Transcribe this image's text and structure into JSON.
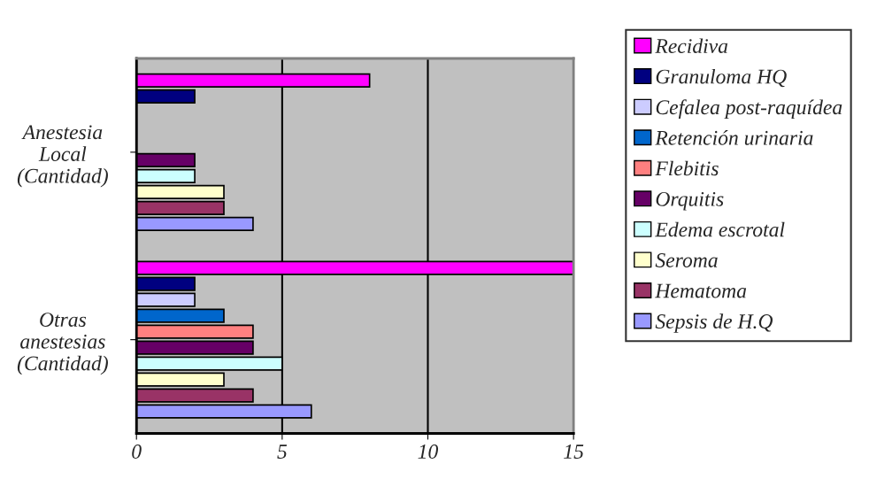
{
  "chart_data": {
    "type": "bar",
    "orientation": "horizontal",
    "categories": [
      "Anestesia Local (Cantidad)",
      "Otras anestesias (Cantidad)"
    ],
    "series": [
      {
        "name": "Recidiva",
        "color": "#ff00ff",
        "values": [
          8,
          15
        ]
      },
      {
        "name": "Granuloma HQ",
        "color": "#000080",
        "values": [
          2,
          2
        ]
      },
      {
        "name": "Cefalea post-raquídea",
        "color": "#ccccff",
        "values": [
          0,
          2
        ]
      },
      {
        "name": "Retención urinaria",
        "color": "#0066cc",
        "values": [
          0,
          3
        ]
      },
      {
        "name": "Flebitis",
        "color": "#ff8080",
        "values": [
          0,
          4
        ]
      },
      {
        "name": "Orquitis",
        "color": "#660066",
        "values": [
          2,
          4
        ]
      },
      {
        "name": "Edema escrotal",
        "color": "#ccffff",
        "values": [
          2,
          5
        ]
      },
      {
        "name": "Seroma",
        "color": "#ffffcc",
        "values": [
          3,
          3
        ]
      },
      {
        "name": "Hematoma",
        "color": "#993366",
        "values": [
          3,
          4
        ]
      },
      {
        "name": "Sepsis de H.Q",
        "color": "#9999ff",
        "values": [
          4,
          6
        ]
      }
    ],
    "xlim": [
      0,
      15
    ],
    "xticks": [
      0,
      5,
      10,
      15
    ],
    "grid": "x",
    "legend": "right"
  }
}
